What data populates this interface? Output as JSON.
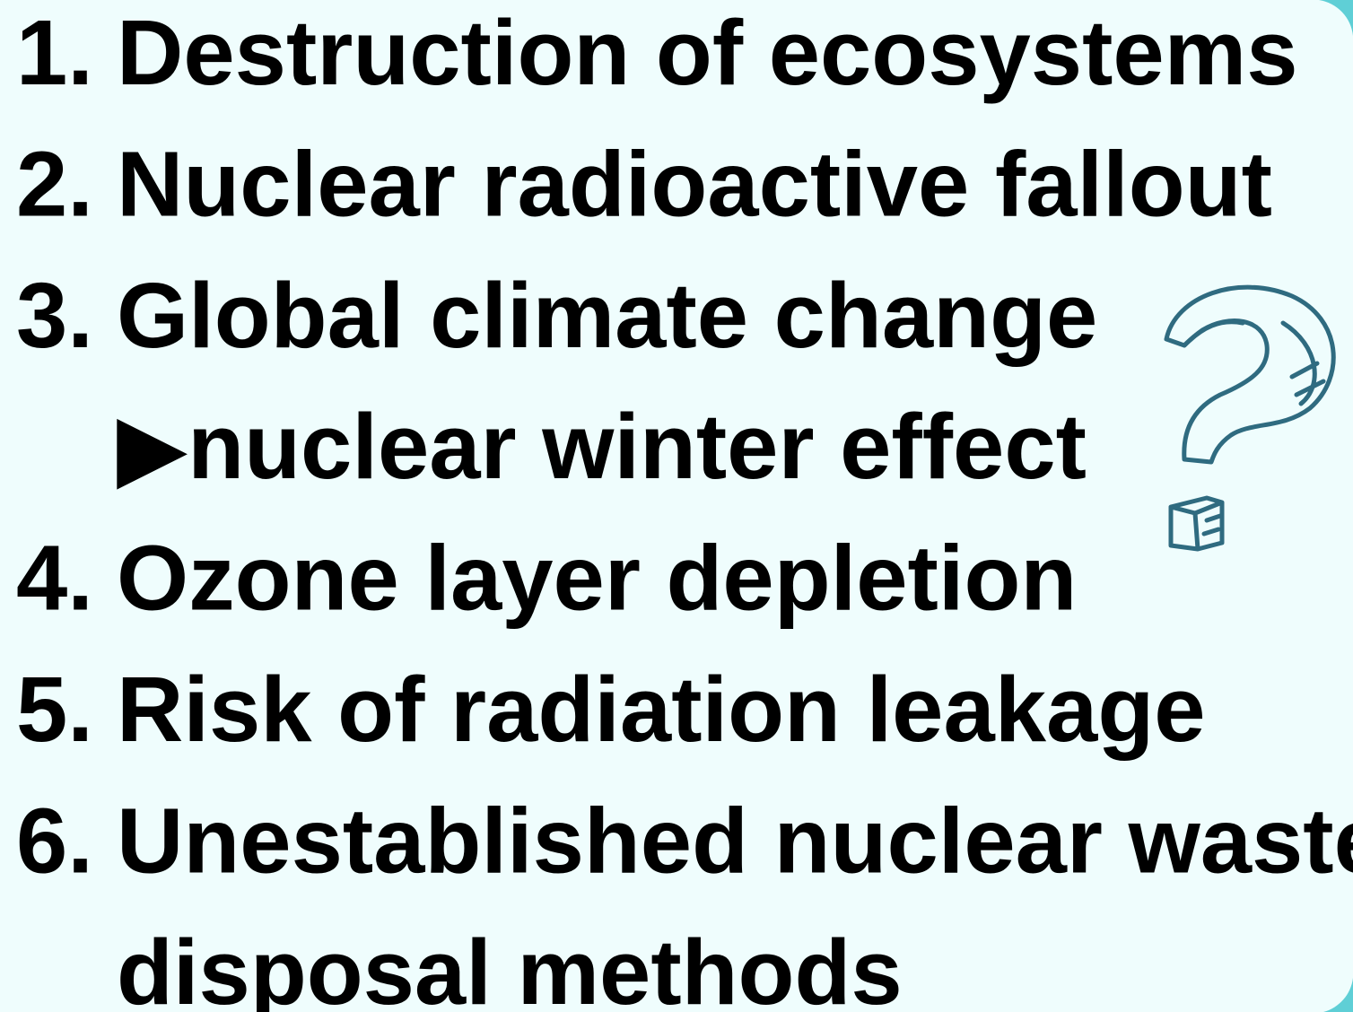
{
  "items": [
    {
      "number": "1.",
      "lines": [
        "Destruction of ecosystems"
      ]
    },
    {
      "number": "2.",
      "lines": [
        "Nuclear radioactive fallout"
      ]
    },
    {
      "number": "3.",
      "lines": [
        "Global climate change",
        "▶nuclear winter effect"
      ]
    },
    {
      "number": "4.",
      "lines": [
        "Ozone layer depletion"
      ]
    },
    {
      "number": "5.",
      "lines": [
        "Risk of radiation leakage"
      ]
    },
    {
      "number": "6.",
      "lines": [
        "Unestablished nuclear waste",
        "disposal methods"
      ]
    }
  ]
}
